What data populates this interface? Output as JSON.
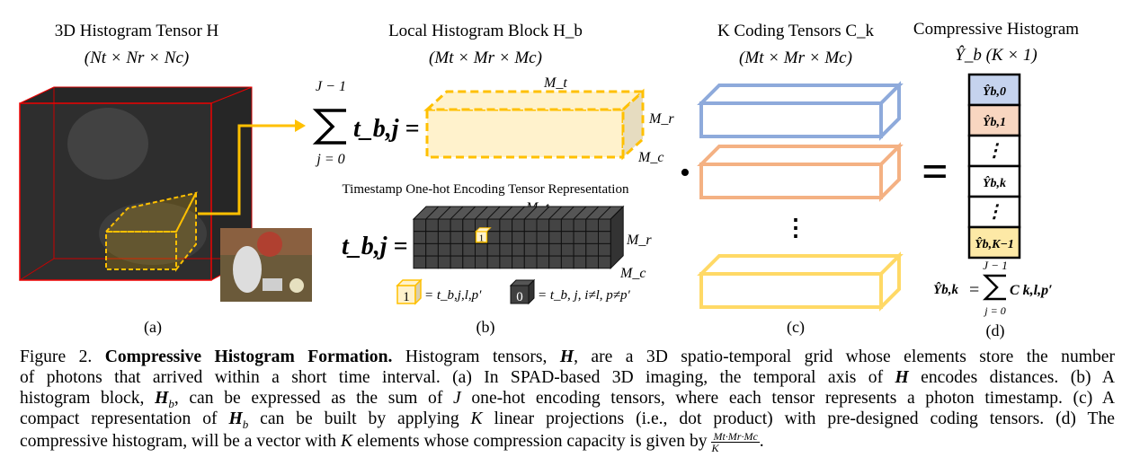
{
  "panel_a": {
    "title": "3D Histogram Tensor H",
    "dims": "(Nt × Nr × Nc)",
    "label": "(a)"
  },
  "panel_b": {
    "title": "Local Histogram Block H_b",
    "dims": "(Mt × Mr × Mc)",
    "label": "(b)",
    "sum_upper": "J − 1",
    "sum_lower": "j = 0",
    "sum_term": "t_b,j =",
    "block_axes": {
      "t": "M_t",
      "r": "M_r",
      "c": "M_c"
    },
    "subtitle": "Timestamp One-hot Encoding Tensor Representation",
    "onehot_lhs": "t_b,j =",
    "hot_value": "1",
    "cold_value": "0",
    "legend_one": "= t_b,j,l,p′",
    "legend_zero": "= t_b, j, i≠l, p≠p′"
  },
  "panel_c": {
    "title": "K Coding Tensors C_k",
    "dims": "(Mt × Mr × Mc)",
    "label": "(c)",
    "dot_operator": "•",
    "ellipsis": "⋮"
  },
  "panel_d": {
    "title": "Compressive Histogram",
    "dims": "Ŷ_b (K × 1)",
    "label": "(d)",
    "equals": "=",
    "cells": [
      {
        "text": "Ŷb,0",
        "color": "#c5d3ee"
      },
      {
        "text": "Ŷb,1",
        "color": "#f8d6c0"
      },
      {
        "text": "⋮",
        "color": "#ffffff"
      },
      {
        "text": "Ŷb,k",
        "color": "#ffffff"
      },
      {
        "text": "⋮",
        "color": "#ffffff"
      },
      {
        "text": "Ŷb,K−1",
        "color": "#fde9a6"
      }
    ],
    "formula_lhs": "Ŷb,k",
    "formula_eq": "=",
    "formula_upper": "J − 1",
    "formula_lower": "j = 0",
    "formula_term": "C k,l,p′"
  },
  "colors": {
    "blue": "#8eaadb",
    "orange": "#f4b183",
    "yellow": "#ffd966",
    "accent_yellow": "#ffc000",
    "cube_dark": "#404040"
  },
  "caption": [
    [
      {
        "t": "Figure 2. "
      },
      {
        "t": "Compressive Histogram Formation.",
        "s": "b"
      },
      {
        "t": " Histogram tensors, "
      },
      {
        "t": "H",
        "s": "it"
      },
      {
        "t": ", are a 3D spatio-temporal grid whose elements store the number"
      }
    ],
    [
      {
        "t": "of photons that arrived within a short time interval.  (a) In SPAD-based 3D imaging, the temporal axis of "
      },
      {
        "t": "H",
        "s": "it"
      },
      {
        "t": " encodes distances.  (b) A"
      }
    ],
    [
      {
        "t": "histogram block, "
      },
      {
        "t": "H",
        "s": "it"
      },
      {
        "t": "b",
        "s": "sub"
      },
      {
        "t": ", can be expressed as the sum of "
      },
      {
        "t": "J",
        "s": "iv"
      },
      {
        "t": " one-hot encoding tensors, where each tensor represents a photon timestamp. (c) A"
      }
    ],
    [
      {
        "t": "compact representation of "
      },
      {
        "t": "H",
        "s": "it"
      },
      {
        "t": "b",
        "s": "sub"
      },
      {
        "t": " can be built by applying "
      },
      {
        "t": "K",
        "s": "iv"
      },
      {
        "t": " linear projections (i.e., dot product) with pre-designed coding tensors. (d) The"
      }
    ],
    [
      {
        "t": "compressive histogram, will be a vector with "
      },
      {
        "t": "K",
        "s": "iv"
      },
      {
        "t": " elements whose compression capacity is given by "
      },
      {
        "t": "Mt·Mr·Mc|K",
        "s": "frac"
      },
      {
        "t": "."
      }
    ]
  ]
}
